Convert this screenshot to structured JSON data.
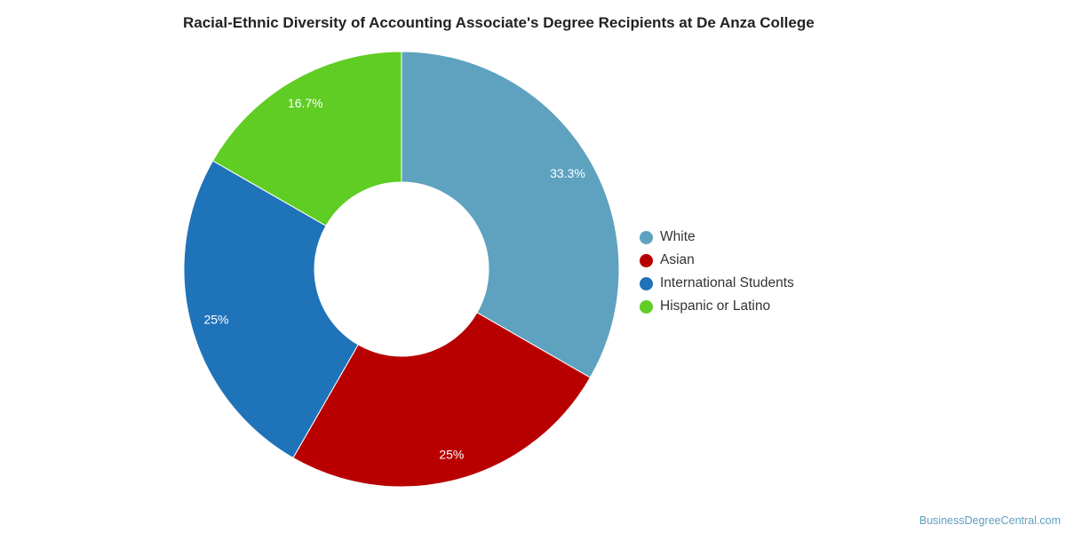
{
  "chart_data": {
    "type": "pie",
    "title": "Racial-Ethnic Diversity of Accounting Associate's Degree Recipients at De Anza College",
    "categories": [
      "White",
      "Asian",
      "International Students",
      "Hispanic or Latino"
    ],
    "values": [
      33.3,
      25,
      25,
      16.7
    ],
    "labels": [
      "33.3%",
      "25%",
      "25%",
      "16.7%"
    ],
    "colors": [
      "#5ea2bf",
      "#b90000",
      "#1f73b9",
      "#5fcd24"
    ],
    "donut": true,
    "legend_position": "right"
  },
  "footer": {
    "source": "BusinessDegreeCentral.com"
  }
}
